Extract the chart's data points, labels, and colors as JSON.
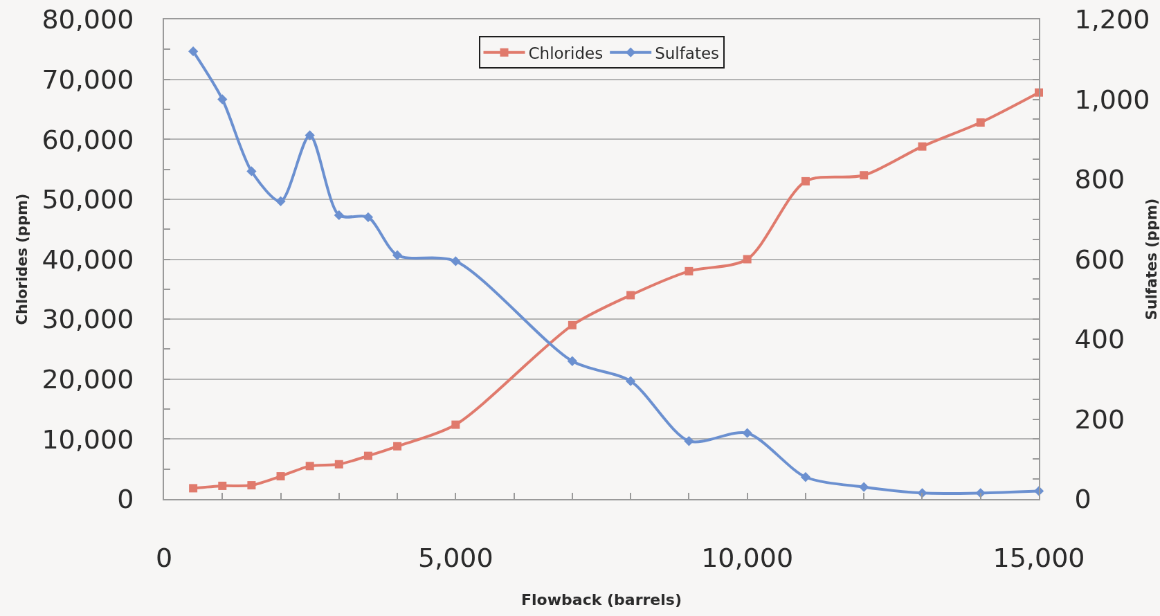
{
  "chart_data": {
    "type": "line",
    "xlabel": "Flowback (barrels)",
    "ylabel": "Chlorides (ppm)",
    "y2label": "Sulfates (ppm)",
    "x": [
      500,
      1000,
      1500,
      2000,
      2500,
      3000,
      3500,
      4000,
      5000,
      7000,
      8000,
      9000,
      10000,
      11000,
      12000,
      13000,
      14000,
      15000
    ],
    "series": [
      {
        "name": "Chlorides",
        "color": "#e07a6c",
        "marker": "square",
        "values": [
          1800,
          2200,
          2300,
          3800,
          5500,
          5800,
          7200,
          8800,
          12400,
          29000,
          34000,
          38000,
          40000,
          53000,
          54000,
          58800,
          62800,
          67800
        ]
      },
      {
        "name": "Sulfates",
        "color": "#6b90d0",
        "marker": "diamond",
        "axis": "y2",
        "values": [
          1120,
          1000,
          820,
          745,
          910,
          710,
          705,
          610,
          595,
          345,
          295,
          145,
          165,
          55,
          30,
          15,
          15,
          20
        ]
      }
    ],
    "xlim": [
      0,
      15000
    ],
    "xticks": [
      0,
      {
        "value": 1000,
        "label": null
      },
      {
        "value": 2000,
        "label": null
      },
      {
        "value": 3000,
        "label": null
      },
      {
        "value": 4000,
        "label": null
      },
      {
        "value": 5000,
        "label": "5,000"
      },
      {
        "value": 6000,
        "label": null
      },
      {
        "value": 7000,
        "label": null
      },
      {
        "value": 8000,
        "label": null
      },
      {
        "value": 9000,
        "label": null
      },
      {
        "value": 10000,
        "label": "10,000"
      },
      {
        "value": 11000,
        "label": null
      },
      {
        "value": 12000,
        "label": null
      },
      {
        "value": 13000,
        "label": null
      },
      {
        "value": 14000,
        "label": null
      },
      {
        "value": 15000,
        "label": "15,000"
      }
    ],
    "ylim": [
      0,
      80000
    ],
    "yticks": [
      0,
      {
        "value": 5000,
        "label": null
      },
      {
        "value": 10000,
        "label": "10,000"
      },
      {
        "value": 15000,
        "label": null
      },
      {
        "value": 20000,
        "label": "20,000"
      },
      {
        "value": 25000,
        "label": null
      },
      {
        "value": 30000,
        "label": "30,000"
      },
      {
        "value": 35000,
        "label": null
      },
      {
        "value": 40000,
        "label": "40,000"
      },
      {
        "value": 45000,
        "label": null
      },
      {
        "value": 50000,
        "label": "50,000"
      },
      {
        "value": 55000,
        "label": null
      },
      {
        "value": 60000,
        "label": "60,000"
      },
      {
        "value": 65000,
        "label": null
      },
      {
        "value": 70000,
        "label": "70,000"
      },
      {
        "value": 75000,
        "label": null
      },
      {
        "value": 80000,
        "label": "80,000"
      }
    ],
    "y2lim": [
      0,
      1200
    ],
    "y2ticks": [
      0,
      {
        "value": 50,
        "label": null
      },
      {
        "value": 100,
        "label": null
      },
      {
        "value": 150,
        "label": null
      },
      200,
      {
        "value": 250,
        "label": null
      },
      {
        "value": 300,
        "label": null
      },
      {
        "value": 350,
        "label": null
      },
      400,
      {
        "value": 450,
        "label": null
      },
      {
        "value": 500,
        "label": null
      },
      {
        "value": 550,
        "label": null
      },
      600,
      {
        "value": 650,
        "label": null
      },
      {
        "value": 700,
        "label": null
      },
      {
        "value": 750,
        "label": null
      },
      800,
      {
        "value": 850,
        "label": null
      },
      {
        "value": 900,
        "label": null
      },
      {
        "value": 950,
        "label": null
      },
      {
        "value": 1000,
        "label": "1,000"
      },
      {
        "value": 1050,
        "label": null
      },
      {
        "value": 1100,
        "label": null
      },
      {
        "value": 1150,
        "label": null
      },
      {
        "value": 1200,
        "label": "1,200"
      }
    ],
    "grid": "y",
    "legend": "top",
    "line_style": "solid"
  }
}
